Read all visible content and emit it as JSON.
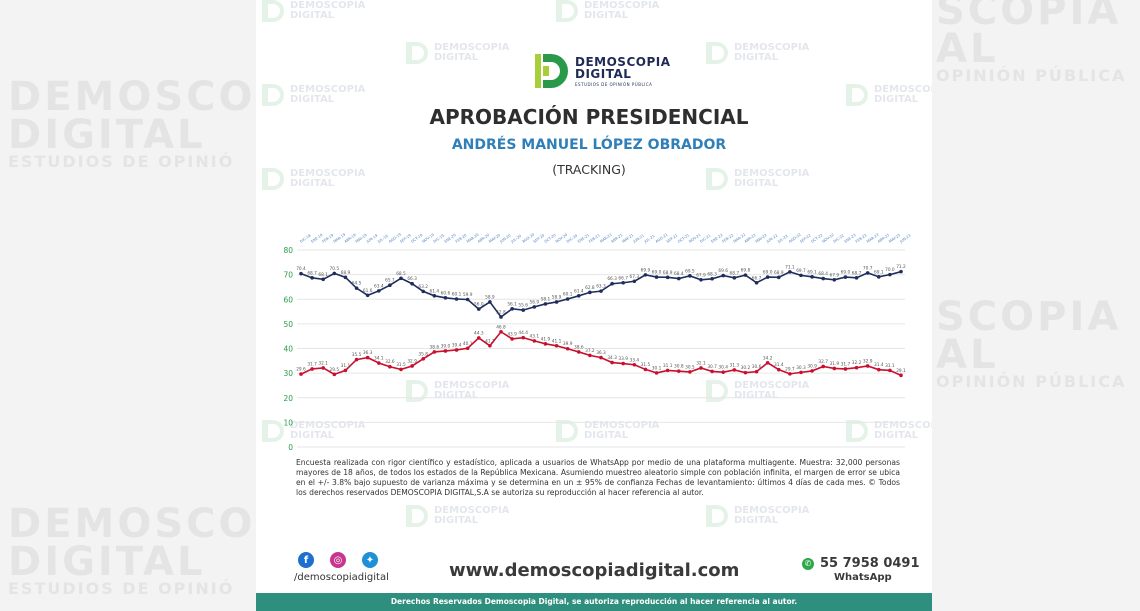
{
  "watermark": {
    "line1": "DEMOSCOPIA",
    "line2": "DIGITAL",
    "line3": "ESTUDIOS DE OPINIÓN PÚBLICA"
  },
  "side_watermark": {
    "l1": "DEMOSCO",
    "l2": "DIGITAL",
    "l3": "ESTUDIOS DE OPINIÓ",
    "r1": "SCOPIA",
    "r2": "AL",
    "r3": "OPINIÓN PÚBLICA"
  },
  "logo": {
    "line1": "DEMOSCOPIA",
    "line2": "DIGITAL",
    "line3": "ESTUDIOS DE OPINIÓN PÚBLICA",
    "colors": {
      "green": "#2a9a4a",
      "lime": "#a7cf3b",
      "navy": "#1f2a55"
    }
  },
  "header": {
    "title": "APROBACIÓN PRESIDENCIAL",
    "subtitle": "ANDRÉS MANUEL LÓPEZ OBRADOR",
    "tag": "(TRACKING)"
  },
  "chart_data": {
    "type": "line",
    "ylim": [
      0,
      80
    ],
    "yticks": [
      0,
      10,
      20,
      30,
      40,
      50,
      60,
      70,
      80
    ],
    "grid": true,
    "colors": {
      "approval": "#1e2d5c",
      "disapproval": "#c8102e",
      "grid": "#e6e6e6"
    },
    "x": [
      "DIC-18",
      "ENE-19",
      "FEB-19",
      "MAR-19",
      "ABR-19",
      "MAY-19",
      "JUN-19",
      "JUL-19",
      "AGO-19",
      "SEP-19",
      "OCT-19",
      "NOV-19",
      "DIC-19",
      "ENE-20",
      "FEB-20",
      "MAR-20",
      "ABR-20",
      "MAY-20",
      "JUN-20",
      "JUL-20",
      "AGO-20",
      "SEP-20",
      "OCT-20",
      "NOV-20",
      "DIC-20",
      "ENE-21",
      "FEB-21",
      "MAR-21",
      "ABR-21",
      "MAY-21",
      "JUN-21",
      "JUL-21",
      "AGO-21",
      "SEP-21",
      "OCT-21",
      "NOV-21",
      "DIC-21",
      "ENE-22",
      "FEB-22",
      "MAR-22",
      "ABR-22",
      "MAY-22",
      "JUN-22",
      "JUL-22",
      "AGO-22",
      "SEP-22",
      "OCT-22",
      "NOV-22",
      "DIC-22",
      "ENE-23",
      "FEB-23",
      "MAR-23",
      "ABR-23",
      "MAY-23",
      "JUN-23"
    ],
    "series": [
      {
        "values": [
          70.4,
          68.7,
          68.1,
          70.5,
          68.9,
          64.5,
          61.6,
          63.4,
          65.7,
          68.5,
          66.3,
          63.2,
          61.4,
          60.6,
          60.1,
          59.9,
          56.0,
          58.9,
          52.8,
          56.1,
          55.6,
          56.9,
          58.1,
          58.9,
          60.1,
          61.4,
          62.8,
          63.3,
          66.3,
          66.7,
          67.3,
          69.9,
          69.0,
          68.9,
          68.4,
          69.5,
          67.9,
          68.3,
          69.6,
          68.7,
          69.8,
          66.7,
          69.0,
          68.9,
          71.1,
          69.7,
          69.1,
          68.4,
          67.9,
          69.0,
          68.7,
          70.7,
          69.1,
          70.0,
          71.2
        ]
      },
      {
        "values": [
          29.6,
          31.7,
          32.1,
          29.5,
          31.1,
          35.5,
          36.3,
          34.1,
          32.6,
          31.5,
          32.9,
          35.8,
          38.6,
          39.0,
          39.4,
          40.1,
          44.3,
          41.1,
          46.8,
          43.9,
          44.4,
          43.1,
          41.9,
          41.1,
          39.9,
          38.6,
          37.2,
          36.3,
          34.3,
          33.9,
          33.4,
          31.5,
          30.1,
          31.1,
          30.8,
          30.5,
          32.1,
          30.7,
          30.4,
          31.3,
          30.2,
          30.6,
          34.2,
          31.4,
          29.7,
          30.3,
          30.9,
          32.7,
          31.9,
          31.7,
          32.2,
          32.9,
          31.4,
          31.1,
          29.1
        ]
      }
    ]
  },
  "footnote": "Encuesta realizada con rigor científico y estadístico, aplicada a usuarios de WhatsApp por medio de una plataforma multiagente. Muestra: 32,000 personas mayores de 18 años, de todos los estados de la República Mexicana. Asumiendo muestreo aleatorio simple con población infinita, el margen de error se ubica en el +/- 3.8% bajo supuesto de varianza máxima y se determina en un ± 95% de confianza Fechas de levantamiento: últimos 4 días de cada mes. © Todos los derechos reservados DEMOSCOPIA DIGITAL,S.A se autoriza su reproducción al hacer referencia al autor.",
  "footer": {
    "handle": "/demoscopiadigital",
    "website": "www.demoscopiadigital.com",
    "phone": "55 7958 0491",
    "whatsapp_label": "WhatsApp",
    "icons": [
      "facebook-icon",
      "instagram-icon",
      "twitter-icon",
      "whatsapp-icon"
    ],
    "rights": "Derechos Reservados Demoscopia Digital, se autoriza reproducción al hacer referencia al autor."
  }
}
